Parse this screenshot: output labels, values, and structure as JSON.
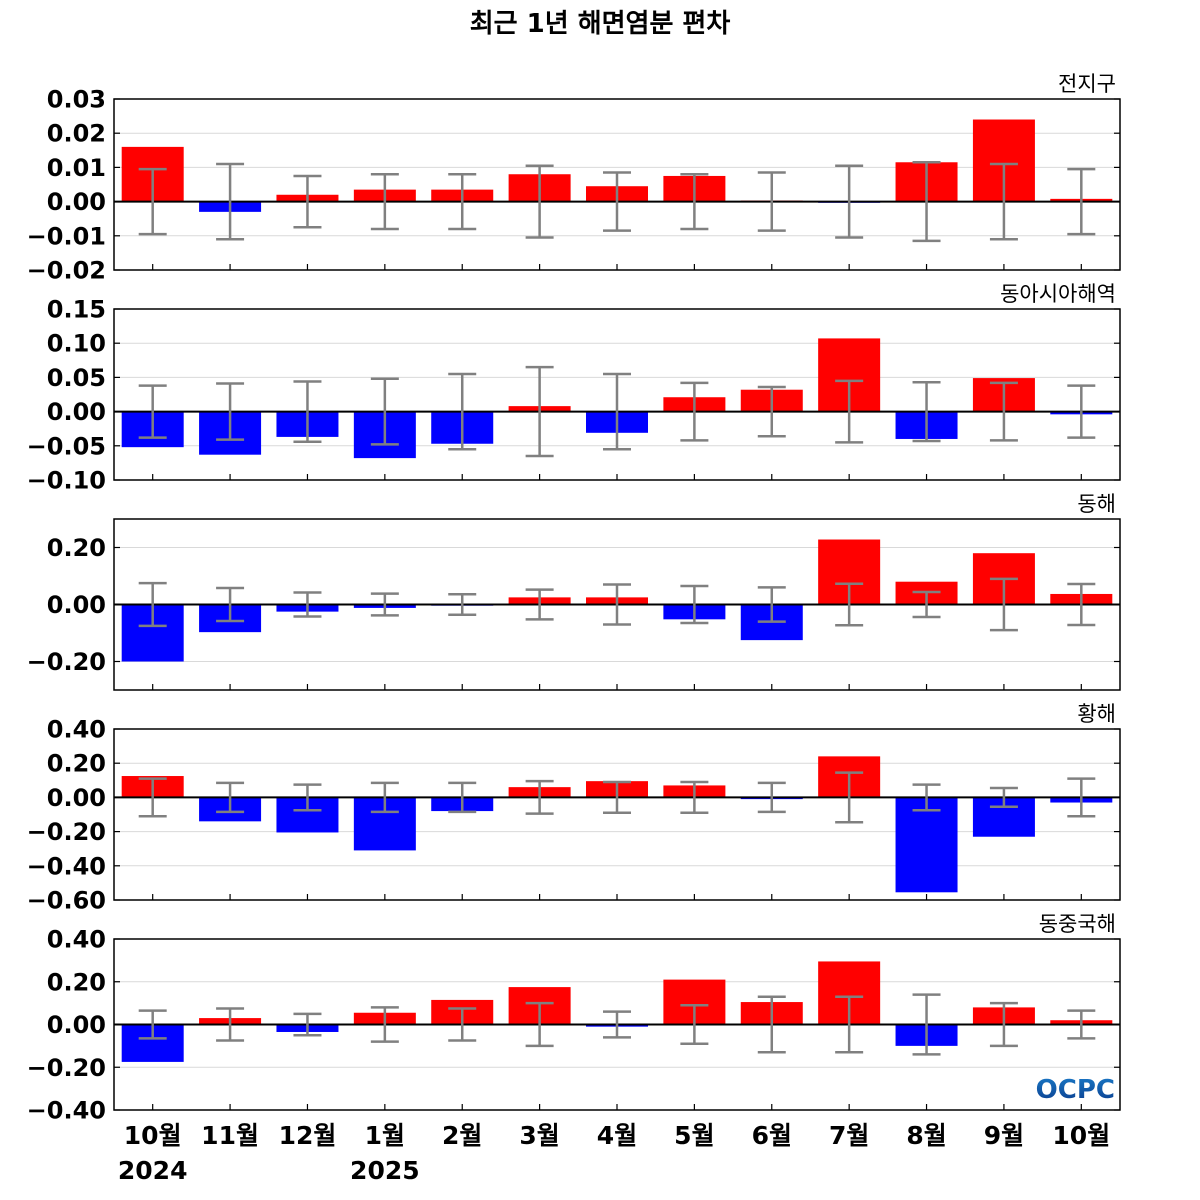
{
  "title": "최근 1년 해면염분 편차",
  "logo": "OCPC",
  "colors": {
    "positive": "#ff0000",
    "negative": "#0000ff",
    "error_bar": "#808080",
    "grid": "#d9d9d9",
    "logo_top": "#1a7ac8",
    "logo_bottom": "#0a3a8a"
  },
  "chart_data": {
    "type": "bar",
    "categories": [
      "10월",
      "11월",
      "12월",
      "1월",
      "2월",
      "3월",
      "4월",
      "5월",
      "6월",
      "7월",
      "8월",
      "9월",
      "10월"
    ],
    "year_labels": [
      {
        "label": "2024",
        "category_index": 0
      },
      {
        "label": "2025",
        "category_index": 3
      }
    ],
    "panels": [
      {
        "name": "전지구",
        "ylim": [
          -0.02,
          0.03
        ],
        "yticks": [
          -0.02,
          -0.01,
          0.0,
          0.01,
          0.02,
          0.03
        ],
        "ytick_labels": [
          "−0.02",
          "−0.01",
          "0.00",
          "0.01",
          "0.02",
          "0.03"
        ],
        "values": [
          0.016,
          -0.003,
          0.002,
          0.0035,
          0.0035,
          0.008,
          0.0045,
          0.0075,
          0.0003,
          -0.0003,
          0.0115,
          0.024,
          0.0008
        ],
        "error": [
          0.0095,
          0.011,
          0.0075,
          0.008,
          0.008,
          0.0105,
          0.0085,
          0.008,
          0.0085,
          0.0105,
          0.0115,
          0.011,
          0.0095
        ]
      },
      {
        "name": "동아시아해역",
        "ylim": [
          -0.1,
          0.15
        ],
        "yticks": [
          -0.1,
          -0.05,
          0.0,
          0.05,
          0.1,
          0.15
        ],
        "ytick_labels": [
          "−0.10",
          "−0.05",
          "0.00",
          "0.05",
          "0.10",
          "0.15"
        ],
        "values": [
          -0.052,
          -0.063,
          -0.037,
          -0.068,
          -0.047,
          0.008,
          -0.031,
          0.021,
          0.032,
          0.107,
          -0.04,
          0.049,
          -0.004
        ],
        "error": [
          0.038,
          0.041,
          0.044,
          0.048,
          0.055,
          0.065,
          0.055,
          0.042,
          0.036,
          0.045,
          0.043,
          0.042,
          0.038
        ]
      },
      {
        "name": "동해",
        "ylim": [
          -0.3,
          0.3
        ],
        "yticks": [
          -0.2,
          0.0,
          0.2
        ],
        "ytick_labels": [
          "−0.20",
          "0.00",
          "0.20"
        ],
        "values": [
          -0.2,
          -0.097,
          -0.025,
          -0.012,
          -0.003,
          0.025,
          0.025,
          -0.052,
          -0.125,
          0.228,
          0.08,
          0.18,
          0.037
        ],
        "error": [
          0.075,
          0.058,
          0.042,
          0.038,
          0.036,
          0.052,
          0.07,
          0.065,
          0.06,
          0.073,
          0.044,
          0.09,
          0.072
        ]
      },
      {
        "name": "황해",
        "ylim": [
          -0.6,
          0.4
        ],
        "yticks": [
          -0.6,
          -0.4,
          -0.2,
          0.0,
          0.2,
          0.4
        ],
        "ytick_labels": [
          "−0.60",
          "−0.40",
          "−0.20",
          "0.00",
          "0.20",
          "0.40"
        ],
        "values": [
          0.125,
          -0.14,
          -0.205,
          -0.31,
          -0.08,
          0.06,
          0.095,
          0.07,
          -0.01,
          0.24,
          -0.555,
          -0.23,
          -0.03
        ],
        "error": [
          0.11,
          0.085,
          0.075,
          0.085,
          0.085,
          0.095,
          0.09,
          0.09,
          0.085,
          0.145,
          0.075,
          0.055,
          0.11
        ]
      },
      {
        "name": "동중국해",
        "ylim": [
          -0.4,
          0.4
        ],
        "yticks": [
          -0.4,
          -0.2,
          0.0,
          0.2,
          0.4
        ],
        "ytick_labels": [
          "−0.40",
          "−0.20",
          "0.00",
          "0.20",
          "0.40"
        ],
        "values": [
          -0.175,
          0.03,
          -0.035,
          0.055,
          0.115,
          0.175,
          -0.01,
          0.21,
          0.105,
          0.295,
          -0.1,
          0.08,
          0.02
        ],
        "error": [
          0.065,
          0.075,
          0.05,
          0.08,
          0.075,
          0.1,
          0.06,
          0.09,
          0.13,
          0.13,
          0.14,
          0.1,
          0.065
        ]
      }
    ]
  }
}
